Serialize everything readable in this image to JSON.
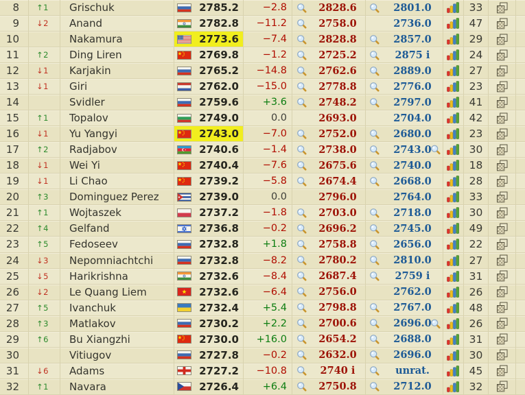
{
  "colors": {
    "background": "#e9e4c6",
    "row_alt": "#ece8cc",
    "separator": "#d8d2ae",
    "highlight_yellow": "#f1ee1e",
    "rating_text": "#26261f",
    "change_negative": "#b00d00",
    "change_positive": "#0d7d11",
    "value_red": "#9c1206",
    "value_blue": "#1d5a96",
    "arrow_up": "#2e8b2e",
    "arrow_down": "#c03222"
  },
  "icons": {
    "magnifier": "magnifier-icon",
    "chart": "bar-chart-icon",
    "boards": "boards-icon"
  },
  "table": {
    "rows": [
      {
        "rank": "8",
        "move": "↑1",
        "move_dir": "up",
        "name": "Grischuk",
        "country": "ru",
        "rating": "2785.2",
        "highlight": false,
        "change": "−2.8",
        "change_type": "neg",
        "has_mag_red": true,
        "value_red": "2828.6",
        "has_mag_blue": true,
        "value_blue": "2801.0",
        "has_extra_mag": false,
        "games": "33"
      },
      {
        "rank": "9",
        "move": "↓2",
        "move_dir": "down",
        "name": "Anand",
        "country": "in",
        "rating": "2782.8",
        "highlight": false,
        "change": "−11.2",
        "change_type": "neg",
        "has_mag_red": true,
        "value_red": "2758.0",
        "has_mag_blue": false,
        "value_blue": "2736.0",
        "has_extra_mag": false,
        "games": "47"
      },
      {
        "rank": "10",
        "move": "",
        "move_dir": "none",
        "name": "Nakamura",
        "country": "us",
        "rating": "2773.6",
        "highlight": true,
        "change": "−7.4",
        "change_type": "neg",
        "has_mag_red": true,
        "value_red": "2828.8",
        "has_mag_blue": true,
        "value_blue": "2857.0",
        "has_extra_mag": false,
        "games": "29"
      },
      {
        "rank": "11",
        "move": "↑2",
        "move_dir": "up",
        "name": "Ding Liren",
        "country": "cn",
        "rating": "2769.8",
        "highlight": false,
        "change": "−1.2",
        "change_type": "neg",
        "has_mag_red": true,
        "value_red": "2725.2",
        "has_mag_blue": true,
        "value_blue": "2875 i",
        "has_extra_mag": false,
        "games": "24"
      },
      {
        "rank": "12",
        "move": "↓1",
        "move_dir": "down",
        "name": "Karjakin",
        "country": "ru",
        "rating": "2765.2",
        "highlight": false,
        "change": "−14.8",
        "change_type": "neg",
        "has_mag_red": true,
        "value_red": "2762.6",
        "has_mag_blue": true,
        "value_blue": "2889.0",
        "has_extra_mag": false,
        "games": "27"
      },
      {
        "rank": "13",
        "move": "↓1",
        "move_dir": "down",
        "name": "Giri",
        "country": "nl",
        "rating": "2762.0",
        "highlight": false,
        "change": "−15.0",
        "change_type": "neg",
        "has_mag_red": true,
        "value_red": "2778.8",
        "has_mag_blue": true,
        "value_blue": "2776.0",
        "has_extra_mag": false,
        "games": "23"
      },
      {
        "rank": "14",
        "move": "",
        "move_dir": "none",
        "name": "Svidler",
        "country": "ru",
        "rating": "2759.6",
        "highlight": false,
        "change": "+3.6",
        "change_type": "pos",
        "has_mag_red": true,
        "value_red": "2748.2",
        "has_mag_blue": true,
        "value_blue": "2797.0",
        "has_extra_mag": false,
        "games": "41"
      },
      {
        "rank": "15",
        "move": "↑1",
        "move_dir": "up",
        "name": "Topalov",
        "country": "bg",
        "rating": "2749.0",
        "highlight": false,
        "change": "0.0",
        "change_type": "zero",
        "has_mag_red": false,
        "value_red": "2693.0",
        "has_mag_blue": false,
        "value_blue": "2704.0",
        "has_extra_mag": false,
        "games": "42"
      },
      {
        "rank": "16",
        "move": "↓1",
        "move_dir": "down",
        "name": "Yu Yangyi",
        "country": "cn",
        "rating": "2743.0",
        "highlight": true,
        "change": "−7.0",
        "change_type": "neg",
        "has_mag_red": true,
        "value_red": "2752.0",
        "has_mag_blue": true,
        "value_blue": "2680.0",
        "has_extra_mag": false,
        "games": "23"
      },
      {
        "rank": "17",
        "move": "↑2",
        "move_dir": "up",
        "name": "Radjabov",
        "country": "az",
        "rating": "2740.6",
        "highlight": false,
        "change": "−1.4",
        "change_type": "neg",
        "has_mag_red": true,
        "value_red": "2738.0",
        "has_mag_blue": true,
        "value_blue": "2743.0",
        "has_extra_mag": true,
        "games": "30"
      },
      {
        "rank": "18",
        "move": "↓1",
        "move_dir": "down",
        "name": "Wei Yi",
        "country": "cn",
        "rating": "2740.4",
        "highlight": false,
        "change": "−7.6",
        "change_type": "neg",
        "has_mag_red": true,
        "value_red": "2675.6",
        "has_mag_blue": true,
        "value_blue": "2740.0",
        "has_extra_mag": false,
        "games": "18"
      },
      {
        "rank": "19",
        "move": "↓1",
        "move_dir": "down",
        "name": "Li Chao",
        "country": "cn",
        "rating": "2739.2",
        "highlight": false,
        "change": "−5.8",
        "change_type": "neg",
        "has_mag_red": true,
        "value_red": "2674.4",
        "has_mag_blue": true,
        "value_blue": "2668.0",
        "has_extra_mag": false,
        "games": "28"
      },
      {
        "rank": "20",
        "move": "↑3",
        "move_dir": "up",
        "name": "Dominguez Perez",
        "country": "cu",
        "rating": "2739.0",
        "highlight": false,
        "change": "0.0",
        "change_type": "zero",
        "has_mag_red": false,
        "value_red": "2796.0",
        "has_mag_blue": false,
        "value_blue": "2764.0",
        "has_extra_mag": false,
        "games": "33"
      },
      {
        "rank": "21",
        "move": "↑1",
        "move_dir": "up",
        "name": "Wojtaszek",
        "country": "pl",
        "rating": "2737.2",
        "highlight": false,
        "change": "−1.8",
        "change_type": "neg",
        "has_mag_red": true,
        "value_red": "2703.0",
        "has_mag_blue": true,
        "value_blue": "2718.0",
        "has_extra_mag": false,
        "games": "30"
      },
      {
        "rank": "22",
        "move": "↑4",
        "move_dir": "up",
        "name": "Gelfand",
        "country": "il",
        "rating": "2736.8",
        "highlight": false,
        "change": "−0.2",
        "change_type": "neg",
        "has_mag_red": true,
        "value_red": "2696.2",
        "has_mag_blue": true,
        "value_blue": "2745.0",
        "has_extra_mag": false,
        "games": "49"
      },
      {
        "rank": "23",
        "move": "↑5",
        "move_dir": "up",
        "name": "Fedoseev",
        "country": "ru",
        "rating": "2732.8",
        "highlight": false,
        "change": "+1.8",
        "change_type": "pos",
        "has_mag_red": true,
        "value_red": "2758.8",
        "has_mag_blue": true,
        "value_blue": "2656.0",
        "has_extra_mag": false,
        "games": "22"
      },
      {
        "rank": "24",
        "move": "↓3",
        "move_dir": "down",
        "name": "Nepomniachtchi",
        "country": "ru",
        "rating": "2732.8",
        "highlight": false,
        "change": "−8.2",
        "change_type": "neg",
        "has_mag_red": true,
        "value_red": "2780.2",
        "has_mag_blue": true,
        "value_blue": "2810.0",
        "has_extra_mag": false,
        "games": "27"
      },
      {
        "rank": "25",
        "move": "↓5",
        "move_dir": "down",
        "name": "Harikrishna",
        "country": "in",
        "rating": "2732.6",
        "highlight": false,
        "change": "−8.4",
        "change_type": "neg",
        "has_mag_red": true,
        "value_red": "2687.4",
        "has_mag_blue": true,
        "value_blue": "2759 i",
        "has_extra_mag": false,
        "games": "31"
      },
      {
        "rank": "26",
        "move": "↓2",
        "move_dir": "down",
        "name": "Le Quang Liem",
        "country": "vn",
        "rating": "2732.6",
        "highlight": false,
        "change": "−6.4",
        "change_type": "neg",
        "has_mag_red": true,
        "value_red": "2756.0",
        "has_mag_blue": false,
        "value_blue": "2762.0",
        "has_extra_mag": false,
        "games": "26"
      },
      {
        "rank": "27",
        "move": "↑5",
        "move_dir": "up",
        "name": "Ivanchuk",
        "country": "ua",
        "rating": "2732.4",
        "highlight": false,
        "change": "+5.4",
        "change_type": "pos",
        "has_mag_red": true,
        "value_red": "2798.8",
        "has_mag_blue": true,
        "value_blue": "2767.0",
        "has_extra_mag": false,
        "games": "48"
      },
      {
        "rank": "28",
        "move": "↑3",
        "move_dir": "up",
        "name": "Matlakov",
        "country": "ru",
        "rating": "2730.2",
        "highlight": false,
        "change": "+2.2",
        "change_type": "pos",
        "has_mag_red": true,
        "value_red": "2700.6",
        "has_mag_blue": true,
        "value_blue": "2696.0",
        "has_extra_mag": true,
        "games": "26"
      },
      {
        "rank": "29",
        "move": "↑6",
        "move_dir": "up",
        "name": "Bu Xiangzhi",
        "country": "cn",
        "rating": "2730.0",
        "highlight": false,
        "change": "+16.0",
        "change_type": "pos",
        "has_mag_red": true,
        "value_red": "2654.2",
        "has_mag_blue": true,
        "value_blue": "2688.0",
        "has_extra_mag": false,
        "games": "31"
      },
      {
        "rank": "30",
        "move": "",
        "move_dir": "none",
        "name": "Vitiugov",
        "country": "ru",
        "rating": "2727.8",
        "highlight": false,
        "change": "−0.2",
        "change_type": "neg",
        "has_mag_red": true,
        "value_red": "2632.0",
        "has_mag_blue": true,
        "value_blue": "2696.0",
        "has_extra_mag": false,
        "games": "30"
      },
      {
        "rank": "31",
        "move": "↓6",
        "move_dir": "down",
        "name": "Adams",
        "country": "en",
        "rating": "2727.2",
        "highlight": false,
        "change": "−10.8",
        "change_type": "neg",
        "has_mag_red": true,
        "value_red": "2740 i",
        "has_mag_blue": true,
        "value_blue": "unrat.",
        "has_extra_mag": false,
        "games": "45"
      },
      {
        "rank": "32",
        "move": "↑1",
        "move_dir": "up",
        "name": "Navara",
        "country": "cz",
        "rating": "2726.4",
        "highlight": false,
        "change": "+6.4",
        "change_type": "pos",
        "has_mag_red": true,
        "value_red": "2750.8",
        "has_mag_blue": true,
        "value_blue": "2712.0",
        "has_extra_mag": false,
        "games": "32"
      }
    ]
  }
}
